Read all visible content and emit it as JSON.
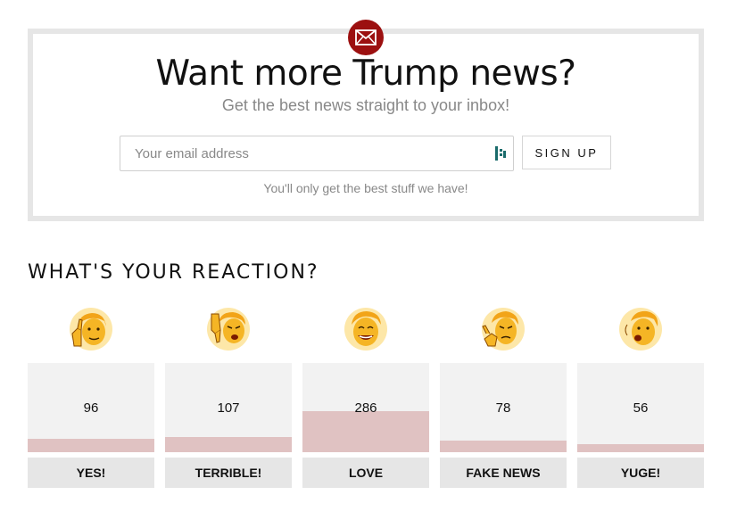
{
  "newsletter": {
    "title": "Want more Trump news?",
    "subtitle": "Get the best news straight to your inbox!",
    "email_placeholder": "Your email address",
    "email_value": "",
    "signup_label": "SIGN UP",
    "disclaimer": "You'll only get the best stuff we have!",
    "badge_icon": "envelope-icon",
    "badge_color": "#9c1010"
  },
  "reactions": {
    "heading": "WHAT'S YOUR REACTION?",
    "bar_color": "#e0c2c2",
    "items": [
      {
        "label": "YES!",
        "count": "96",
        "value": 96,
        "icon": "thumbs-up-face-icon"
      },
      {
        "label": "TERRIBLE!",
        "count": "107",
        "value": 107,
        "icon": "thumbs-down-face-icon"
      },
      {
        "label": "LOVE",
        "count": "286",
        "value": 286,
        "icon": "smiling-face-icon"
      },
      {
        "label": "FAKE NEWS",
        "count": "78",
        "value": 78,
        "icon": "pointing-face-icon"
      },
      {
        "label": "YUGE!",
        "count": "56",
        "value": 56,
        "icon": "shouting-face-icon"
      }
    ]
  }
}
